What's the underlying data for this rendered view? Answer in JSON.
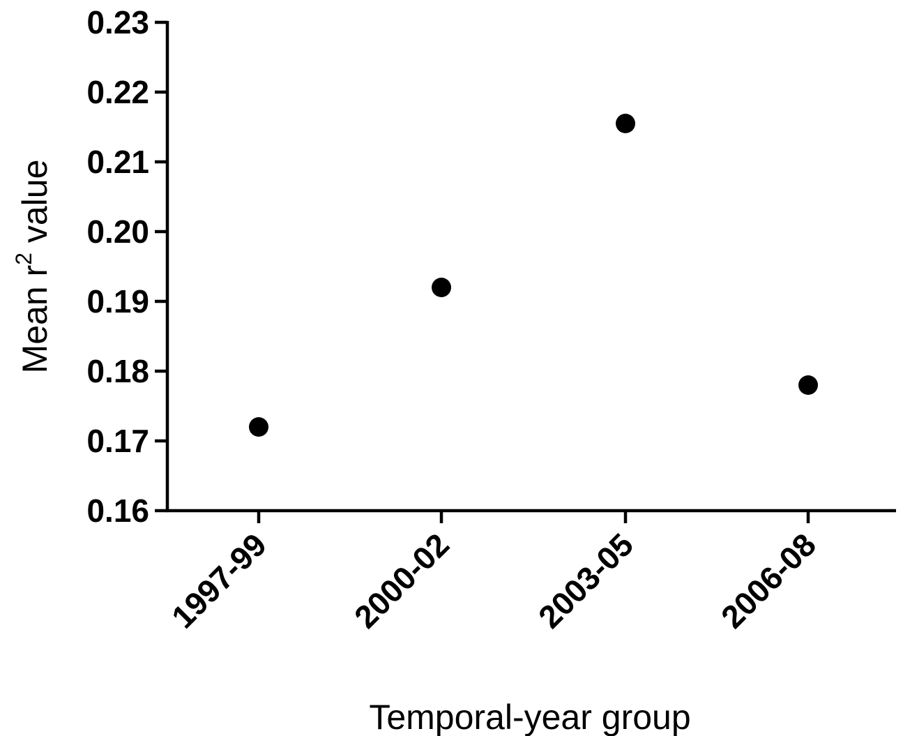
{
  "chart_data": {
    "type": "scatter",
    "title": "",
    "xlabel": "Temporal-year group",
    "ylabel": {
      "prefix": "Mean r",
      "superscript": "2",
      "suffix": " value"
    },
    "categories": [
      "1997-99",
      "2000-02",
      "2003-05",
      "2006-08"
    ],
    "values": [
      0.172,
      0.192,
      0.2155,
      0.178
    ],
    "ylim": [
      0.16,
      0.23
    ],
    "yticks": [
      "0.16",
      "0.17",
      "0.18",
      "0.19",
      "0.20",
      "0.21",
      "0.22",
      "0.23"
    ],
    "marker_color": "#000000",
    "grid": false,
    "legend": "none"
  }
}
